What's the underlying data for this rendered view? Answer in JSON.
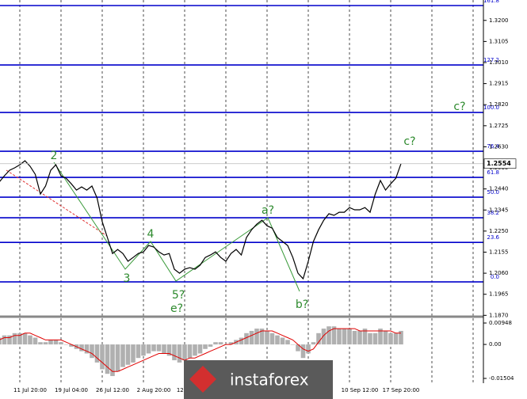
{
  "chart_data": {
    "type": "line",
    "color": "#000000",
    "categories": [
      null,
      null,
      null,
      null,
      null,
      null,
      "11 Jul 20:00",
      null,
      null,
      null,
      null,
      null,
      null,
      null,
      "19 Jul 04:00",
      null,
      null,
      null,
      null,
      null,
      null,
      null,
      "26 Jul 12:00",
      null,
      null,
      null,
      null,
      null,
      null,
      null,
      "2 Aug 20:00",
      null,
      null,
      null,
      null,
      null,
      "12 Au",
      null,
      null,
      null,
      null,
      null,
      null,
      null,
      null,
      null,
      null,
      null,
      null,
      null,
      null,
      null,
      null,
      null,
      null,
      null,
      null,
      null,
      null,
      null,
      null,
      null,
      null,
      null,
      null,
      null,
      null,
      null,
      null,
      null,
      "10 Sep 12:00",
      null,
      null,
      null,
      null,
      null,
      null,
      null,
      "17 Sep 20:00"
    ],
    "values": [
      1.2471,
      1.2499,
      1.2524,
      1.2535,
      1.2549,
      1.2567,
      1.2542,
      1.2506,
      1.2417,
      1.2453,
      1.2524,
      1.2549,
      1.2499,
      1.2488,
      1.2463,
      1.2435,
      1.2449,
      1.2435,
      1.2453,
      1.2399,
      1.2292,
      1.2221,
      1.2149,
      1.2167,
      1.2149,
      1.2114,
      1.2131,
      1.2149,
      1.2156,
      1.2185,
      1.2178,
      1.2156,
      1.2142,
      1.2149,
      1.2078,
      1.206,
      1.2078,
      1.2085,
      1.2078,
      1.2096,
      1.2131,
      1.2142,
      1.2156,
      1.2131,
      1.2114,
      1.2149,
      1.2167,
      1.2142,
      1.2221,
      1.2256,
      1.2281,
      1.2299,
      1.2274,
      1.2263,
      1.2221,
      1.2203,
      1.2185,
      1.2131,
      1.206,
      1.2035,
      1.2114,
      1.2203,
      1.2256,
      1.2299,
      1.2328,
      1.2321,
      1.2335,
      1.2335,
      1.2356,
      1.2346,
      1.2346,
      1.2356,
      1.2335,
      1.2417,
      1.2478,
      1.2435,
      1.2463,
      1.2488,
      1.2554
    ],
    "last_price": 1.2554,
    "ylim": [
      1.1864,
      1.3292
    ],
    "yticks": [
      {
        "value": 1.32,
        "label": "1.3200"
      },
      1.3105,
      {
        "value": 1.301,
        "label": "1.3010"
      },
      1.2915,
      {
        "value": 1.282,
        "label": "1.2820"
      },
      1.2725,
      {
        "value": 1.263,
        "label": "1.2630"
      },
      1.2535,
      {
        "value": 1.244,
        "label": "1.2440"
      },
      1.2345,
      {
        "value": 1.225,
        "label": "1.2250"
      },
      1.2155,
      {
        "value": 1.206,
        "label": "1.2060"
      },
      1.1965,
      {
        "value": 1.187,
        "label": "1.1870"
      }
    ],
    "grid": true,
    "fib_color": "#0000cc",
    "fib_levels": [
      {
        "label": "161.8",
        "price": 1.3267
      },
      {
        "label": "127.2",
        "price": 1.2999
      },
      {
        "label": "100.0",
        "price": 1.2785
      },
      {
        "label": "76.4",
        "price": 1.261
      },
      {
        "label": "61.8",
        "price": 1.2492
      },
      {
        "label": "50.0",
        "price": 1.2403
      },
      {
        "label": "38.2",
        "price": 1.231
      },
      {
        "label": "23.6",
        "price": 1.2199
      },
      {
        "label": "0.0",
        "price": 1.2021
      }
    ],
    "annotations": [
      "2",
      "3",
      "4",
      "5?",
      "e?",
      "a?",
      "b?",
      "c?",
      "c?"
    ],
    "oscillator": {
      "ylim": [
        -0.01714,
        0.01229
      ],
      "yticks": [
        0.00948,
        {
          "value": 0,
          "label": "0.00"
        },
        -0.01504
      ],
      "histogram_color": "#b0b0b0",
      "signal_color": "#e00000",
      "histogram": [
        0.003,
        0.004,
        0.004,
        0.005,
        0.005,
        0.005,
        0.004,
        0.003,
        0.001,
        0.001,
        0.002,
        0.002,
        0.001,
        0,
        -0.001,
        -0.002,
        -0.003,
        -0.004,
        -0.006,
        -0.008,
        -0.011,
        -0.013,
        -0.014,
        -0.012,
        -0.01,
        -0.009,
        -0.008,
        -0.006,
        -0.005,
        -0.004,
        -0.003,
        -0.003,
        -0.004,
        -0.005,
        -0.007,
        -0.008,
        -0.007,
        -0.006,
        -0.005,
        -0.004,
        -0.002,
        -0.001,
        0.001,
        0.001,
        0,
        0.001,
        0.002,
        0.003,
        0.005,
        0.006,
        0.007,
        0.007,
        0.006,
        0.005,
        0.004,
        0.003,
        0.002,
        0,
        -0.003,
        -0.006,
        -0.004,
        0.001,
        0.005,
        0.007,
        0.008,
        0.008,
        0.007,
        0.007,
        0.007,
        0.006,
        0.006,
        0.007,
        0.005,
        0.005,
        0.007,
        0.006,
        0.005,
        0.005,
        0.006
      ],
      "signal": [
        0.002,
        0.003,
        0.003,
        0.004,
        0.004,
        0.005,
        0.005,
        0.004,
        0.003,
        0.002,
        0.002,
        0.002,
        0.002,
        0.001,
        0,
        -0.001,
        -0.002,
        -0.003,
        -0.004,
        -0.006,
        -0.008,
        -0.01,
        -0.012,
        -0.012,
        -0.011,
        -0.01,
        -0.009,
        -0.008,
        -0.007,
        -0.006,
        -0.005,
        -0.004,
        -0.004,
        -0.004,
        -0.005,
        -0.006,
        -0.007,
        -0.006,
        -0.006,
        -0.005,
        -0.004,
        -0.003,
        -0.002,
        -0.001,
        0,
        0,
        0.001,
        0.002,
        0.003,
        0.004,
        0.005,
        0.006,
        0.006,
        0.006,
        0.005,
        0.004,
        0.003,
        0.002,
        0,
        -0.002,
        -0.003,
        -0.002,
        0.001,
        0.004,
        0.006,
        0.007,
        0.007,
        0.007,
        0.007,
        0.007,
        0.006,
        0.006,
        0.006,
        0.006,
        0.006,
        0.006,
        0.006,
        0.005,
        0.005
      ]
    },
    "watermark": "instaforex"
  }
}
